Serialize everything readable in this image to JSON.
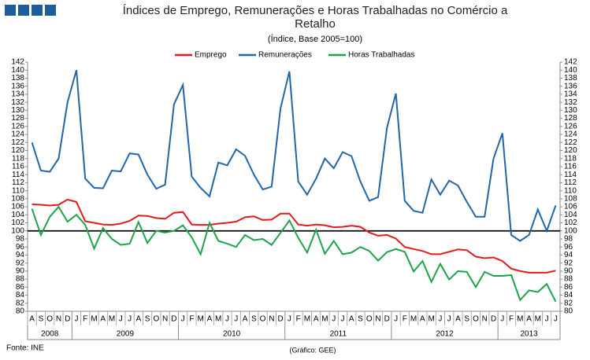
{
  "chart_data": {
    "type": "line",
    "title": "Índices de Emprego, Remunerações e Horas Trabalhadas no Comércio a Retalho",
    "subtitle": "(Índice, Base 2005=100)",
    "source": "Fonte: INE",
    "credit": "(Gráfico: GEE)",
    "categories": [
      "A",
      "S",
      "O",
      "N",
      "D",
      "J",
      "F",
      "M",
      "A",
      "M",
      "J",
      "J",
      "A",
      "S",
      "O",
      "N",
      "D",
      "J",
      "F",
      "M",
      "A",
      "M",
      "J",
      "J",
      "A",
      "S",
      "O",
      "N",
      "D",
      "J",
      "F",
      "M",
      "A",
      "M",
      "J",
      "J",
      "A",
      "S",
      "O",
      "N",
      "D",
      "J",
      "F",
      "M",
      "A",
      "M",
      "J",
      "J",
      "A",
      "S",
      "O",
      "N",
      "D",
      "J",
      "F",
      "M",
      "A",
      "M",
      "J",
      "J"
    ],
    "years": [
      "2008",
      "2008",
      "2008",
      "2008",
      "2008",
      "2009",
      "2009",
      "2009",
      "2009",
      "2009",
      "2009",
      "2009",
      "2009",
      "2009",
      "2009",
      "2009",
      "2009",
      "2010",
      "2010",
      "2010",
      "2010",
      "2010",
      "2010",
      "2010",
      "2010",
      "2010",
      "2010",
      "2010",
      "2010",
      "2011",
      "2011",
      "2011",
      "2011",
      "2011",
      "2011",
      "2011",
      "2011",
      "2011",
      "2011",
      "2011",
      "2011",
      "2012",
      "2012",
      "2012",
      "2012",
      "2012",
      "2012",
      "2012",
      "2012",
      "2012",
      "2012",
      "2012",
      "2012",
      "2013",
      "2013",
      "2013",
      "2013",
      "2013",
      "2013",
      "2013"
    ],
    "series": [
      {
        "name": "Emprego",
        "color": "#e41a1c",
        "values": [
          106.6,
          106.5,
          106.3,
          106.5,
          107.8,
          107.2,
          102.4,
          102,
          101.6,
          101.5,
          101.8,
          102.5,
          103.8,
          103.7,
          103.2,
          103,
          104.5,
          104.7,
          101.6,
          101.5,
          101.5,
          101.8,
          102,
          102.3,
          103.4,
          103.6,
          102.7,
          102.8,
          104.3,
          104.3,
          101.6,
          101.3,
          101.6,
          101.4,
          100.9,
          101,
          101.3,
          101,
          99.6,
          98.8,
          99,
          98.1,
          96,
          95.5,
          95,
          94.2,
          94.2,
          94.8,
          95.4,
          95.2,
          93.6,
          93.2,
          93.4,
          92.5,
          90.6,
          90,
          89.6,
          89.6,
          89.6,
          90.1
        ]
      },
      {
        "name": "Remunerações",
        "color": "#2266a8",
        "values": [
          122,
          115,
          114.7,
          118,
          132,
          140,
          113,
          110.7,
          110.6,
          115,
          114.8,
          119.3,
          119,
          114,
          110.5,
          111.5,
          131.5,
          136.3,
          113.5,
          110.7,
          108.6,
          117,
          116.3,
          120.3,
          118.7,
          114,
          110.3,
          111,
          130.5,
          139.7,
          112.3,
          109,
          113,
          118,
          115.6,
          119.6,
          118.6,
          112.3,
          107.5,
          108.4,
          125.7,
          134.2,
          107.5,
          105,
          104.5,
          112.8,
          109,
          112.5,
          111.3,
          107.2,
          103.5,
          103.5,
          118,
          124.3,
          99,
          97.5,
          99,
          105.3,
          100,
          106.3
        ]
      },
      {
        "name": "Horas Trabalhadas",
        "color": "#1fa34a",
        "values": [
          105.5,
          99,
          103.5,
          106,
          102.3,
          104,
          101.5,
          95.6,
          100.7,
          98,
          96.5,
          96.8,
          102.2,
          97,
          100,
          99.6,
          100,
          101.4,
          98.4,
          94.2,
          102,
          97.5,
          96.8,
          96,
          99,
          97.7,
          98,
          96.5,
          99.5,
          102.6,
          98.3,
          94.6,
          100.3,
          94.3,
          97.5,
          94.2,
          94.6,
          96,
          95,
          92.6,
          94.7,
          95.5,
          94.8,
          89.9,
          92.5,
          87.3,
          91.8,
          87.9,
          90,
          89.8,
          86,
          89.8,
          88.8,
          88.8,
          89,
          82.8,
          85.2,
          84.8,
          86.8,
          82.4
        ]
      }
    ],
    "ylim": [
      80,
      142
    ],
    "yticks": [
      80,
      82,
      84,
      86,
      88,
      90,
      92,
      94,
      96,
      98,
      100,
      102,
      104,
      106,
      108,
      110,
      112,
      114,
      116,
      118,
      120,
      122,
      124,
      126,
      128,
      130,
      132,
      134,
      136,
      138,
      140,
      142
    ],
    "reference_line": 100,
    "legend": "top",
    "grid": false
  }
}
